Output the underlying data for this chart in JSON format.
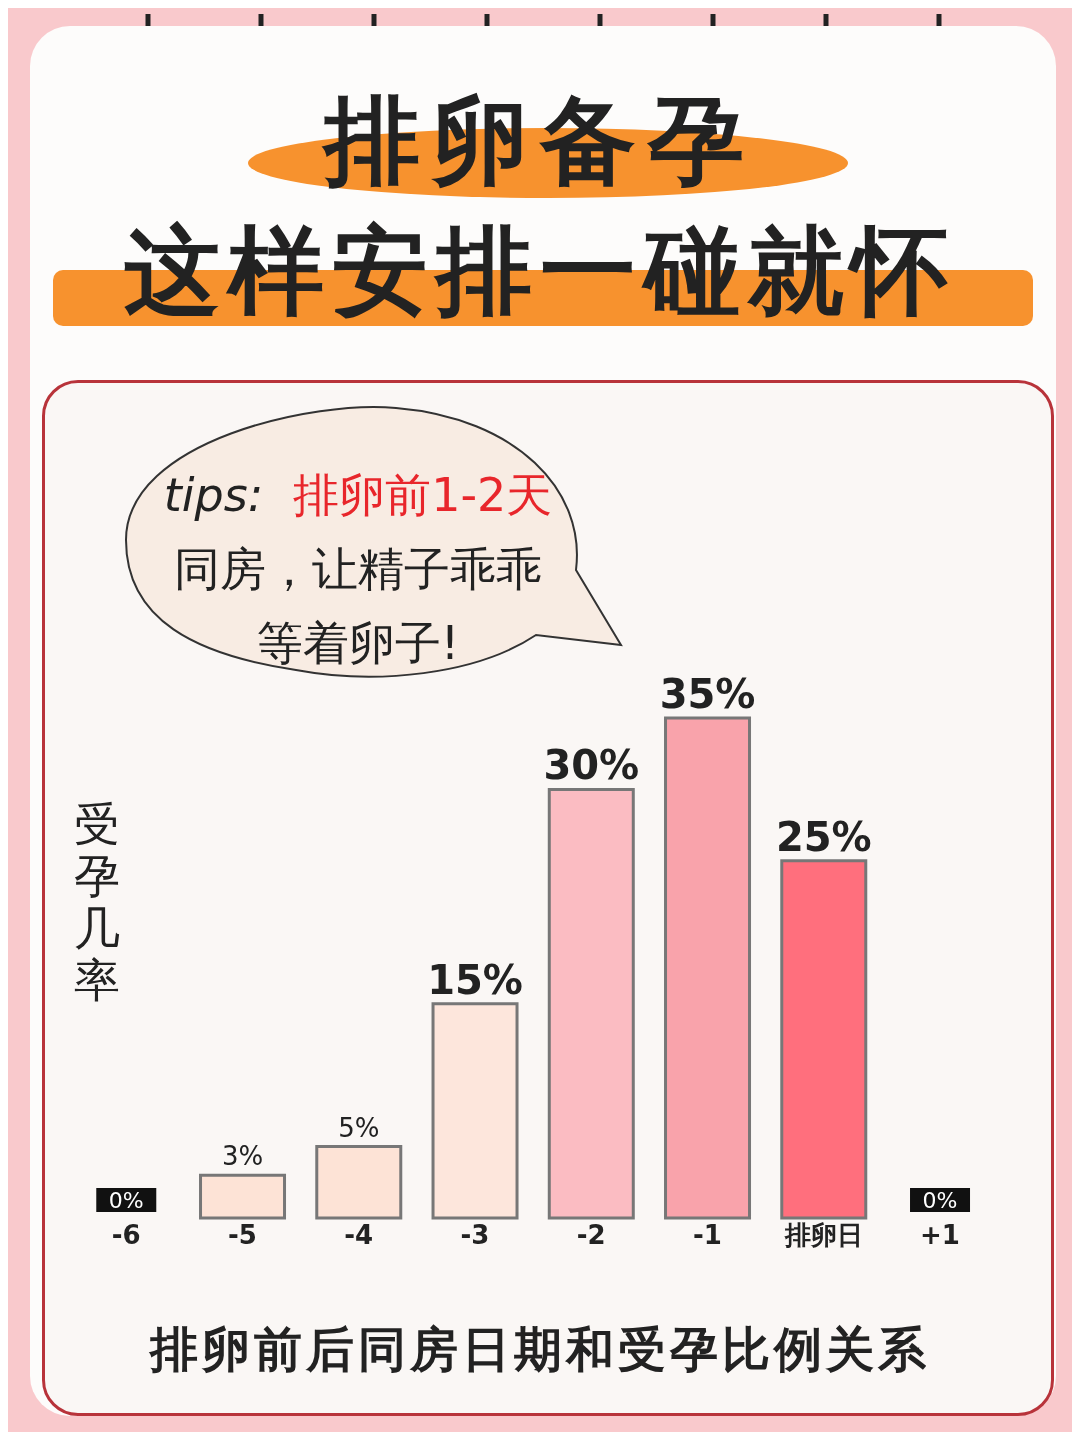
{
  "chart_data": {
    "type": "bar",
    "title": "排卵备孕",
    "subtitle": "这样安排一碰就怀",
    "annotations": [
      "tips:",
      "排卵前1-2天",
      "同房，让精子乖乖",
      "等着卵子!"
    ],
    "ylabel": "受孕几率",
    "xlabel": "排卵前后同房日期和受孕比例关系",
    "categories": [
      "-6",
      "-5",
      "-4",
      "-3",
      "-2",
      "-1",
      "排卵日",
      "+1"
    ],
    "values": [
      0,
      3,
      5,
      15,
      30,
      35,
      25,
      0
    ],
    "value_labels": [
      "0%",
      "3%",
      "5%",
      "15%",
      "30%",
      "35%",
      "25%",
      "0%"
    ],
    "colors": [
      "#111111",
      "#fde3d6",
      "#fde3d6",
      "#fde6dc",
      "#fbbcc2",
      "#f9a3ab",
      "#ff6f7d",
      "#111111"
    ],
    "grid": false,
    "legend": false
  }
}
